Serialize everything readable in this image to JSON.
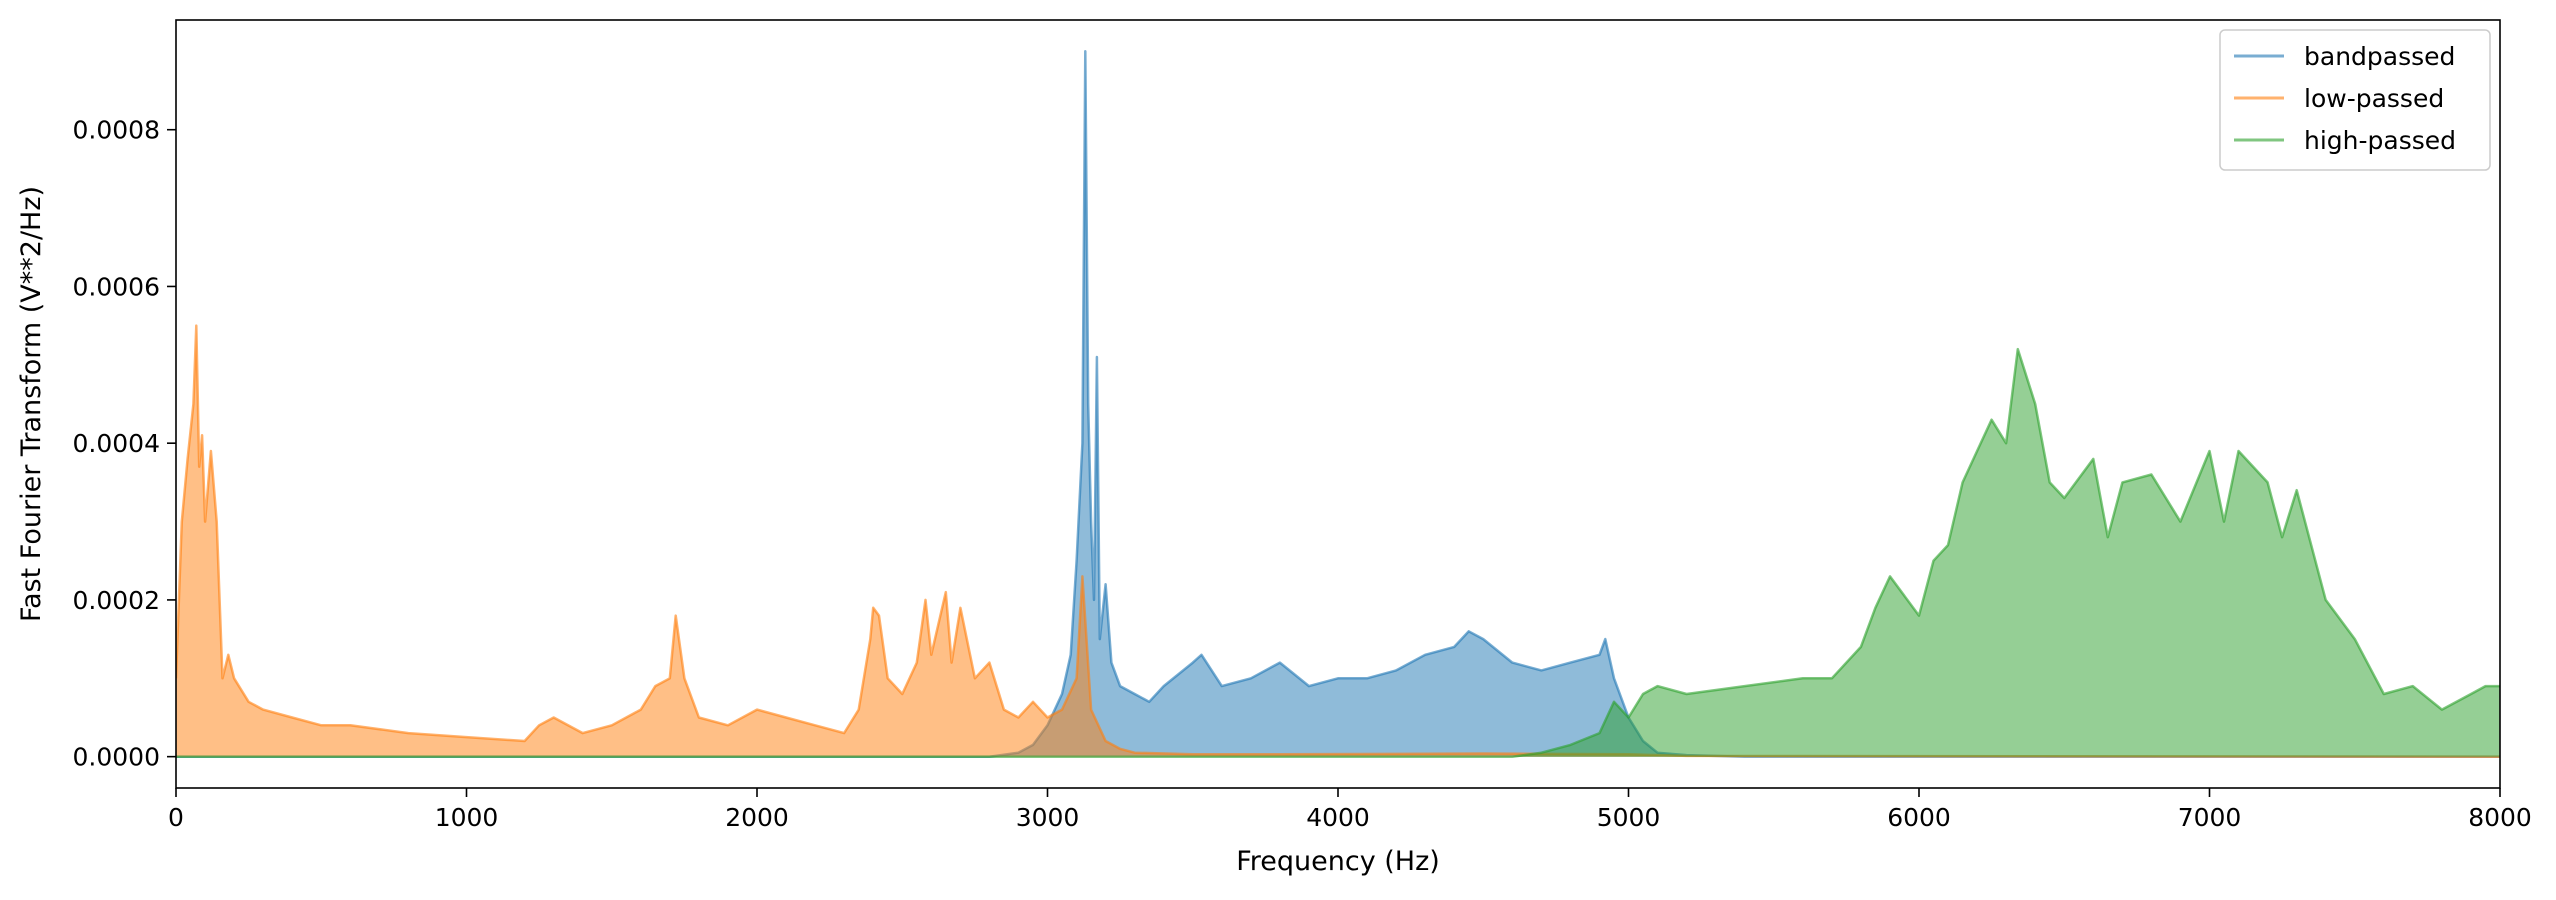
{
  "chart_data": {
    "type": "line",
    "title": "",
    "xlabel": "Frequency (Hz)",
    "ylabel": "Fast Fourier Transform (V**2/Hz)",
    "xlim": [
      0,
      8000
    ],
    "ylim": [
      -4e-05,
      0.00094
    ],
    "xticks": [
      0,
      1000,
      2000,
      3000,
      4000,
      5000,
      6000,
      7000,
      8000
    ],
    "xtick_labels": [
      "0",
      "1000",
      "2000",
      "3000",
      "4000",
      "5000",
      "6000",
      "7000",
      "8000"
    ],
    "yticks": [
      0,
      0.0002,
      0.0004,
      0.0006,
      0.0008
    ],
    "ytick_labels": [
      "0.0000",
      "0.0002",
      "0.0004",
      "0.0006",
      "0.0008"
    ],
    "grid": false,
    "legend_position": "top-right",
    "series": [
      {
        "name": "bandpassed",
        "color": "#1f77b4",
        "alpha": 0.5,
        "x": [
          0,
          2800,
          2900,
          2950,
          3000,
          3050,
          3080,
          3100,
          3120,
          3130,
          3140,
          3150,
          3160,
          3170,
          3180,
          3200,
          3220,
          3250,
          3300,
          3350,
          3400,
          3500,
          3530,
          3600,
          3700,
          3800,
          3900,
          4000,
          4100,
          4200,
          4300,
          4400,
          4450,
          4500,
          4600,
          4700,
          4800,
          4900,
          4920,
          4950,
          5000,
          5050,
          5100,
          5200,
          5400,
          8000
        ],
        "y": [
          0.0,
          0.0,
          5e-06,
          1.5e-05,
          4e-05,
          8e-05,
          0.00013,
          0.00025,
          0.0004,
          0.0009,
          0.00045,
          0.0003,
          0.0002,
          0.00051,
          0.00015,
          0.00022,
          0.00012,
          9e-05,
          8e-05,
          7e-05,
          9e-05,
          0.00012,
          0.00013,
          9e-05,
          0.0001,
          0.00012,
          9e-05,
          0.0001,
          0.0001,
          0.00011,
          0.00013,
          0.00014,
          0.00016,
          0.00015,
          0.00012,
          0.00011,
          0.00012,
          0.00013,
          0.00015,
          0.0001,
          5e-05,
          2e-05,
          5e-06,
          2e-06,
          0.0,
          0.0
        ]
      },
      {
        "name": "low-passed",
        "color": "#ff7f0e",
        "alpha": 0.5,
        "x": [
          0,
          20,
          40,
          60,
          70,
          80,
          90,
          100,
          120,
          140,
          160,
          180,
          200,
          250,
          300,
          400,
          500,
          600,
          800,
          1000,
          1200,
          1250,
          1300,
          1400,
          1500,
          1600,
          1650,
          1700,
          1720,
          1750,
          1800,
          1900,
          2000,
          2100,
          2200,
          2300,
          2350,
          2390,
          2400,
          2420,
          2450,
          2500,
          2550,
          2580,
          2600,
          2650,
          2670,
          2700,
          2750,
          2800,
          2850,
          2900,
          2950,
          3000,
          3050,
          3100,
          3120,
          3150,
          3200,
          3250,
          3300,
          3500,
          3800,
          4500,
          5000,
          5200,
          8000
        ],
        "y": [
          0.0001,
          0.0003,
          0.00038,
          0.00045,
          0.00055,
          0.00037,
          0.00041,
          0.0003,
          0.00039,
          0.0003,
          0.0001,
          0.00013,
          0.0001,
          7e-05,
          6e-05,
          5e-05,
          4e-05,
          4e-05,
          3e-05,
          2.5e-05,
          2e-05,
          4e-05,
          5e-05,
          3e-05,
          4e-05,
          6e-05,
          9e-05,
          0.0001,
          0.00018,
          0.0001,
          5e-05,
          4e-05,
          6e-05,
          5e-05,
          4e-05,
          3e-05,
          6e-05,
          0.00015,
          0.00019,
          0.00018,
          0.0001,
          8e-05,
          0.00012,
          0.0002,
          0.00013,
          0.00021,
          0.00012,
          0.00019,
          0.0001,
          0.00012,
          6e-05,
          5e-05,
          7e-05,
          5e-05,
          6e-05,
          0.0001,
          0.00023,
          6e-05,
          2e-05,
          1e-05,
          5e-06,
          3e-06,
          3e-06,
          4e-06,
          3e-06,
          1e-06,
          0.0
        ]
      },
      {
        "name": "high-passed",
        "color": "#2ca02c",
        "alpha": 0.5,
        "x": [
          0,
          4600,
          4700,
          4800,
          4900,
          4950,
          5000,
          5050,
          5100,
          5200,
          5400,
          5600,
          5700,
          5800,
          5850,
          5900,
          6000,
          6050,
          6100,
          6150,
          6200,
          6250,
          6300,
          6340,
          6400,
          6450,
          6500,
          6600,
          6650,
          6700,
          6800,
          6900,
          7000,
          7050,
          7100,
          7200,
          7250,
          7300,
          7400,
          7500,
          7600,
          7700,
          7800,
          7900,
          7950,
          8000
        ],
        "y": [
          0.0,
          0.0,
          5e-06,
          1.5e-05,
          3e-05,
          7e-05,
          5e-05,
          8e-05,
          9e-05,
          8e-05,
          9e-05,
          0.0001,
          0.0001,
          0.00014,
          0.00019,
          0.00023,
          0.00018,
          0.00025,
          0.00027,
          0.00035,
          0.00039,
          0.00043,
          0.0004,
          0.00052,
          0.00045,
          0.00035,
          0.00033,
          0.00038,
          0.00028,
          0.00035,
          0.00036,
          0.0003,
          0.00039,
          0.0003,
          0.00039,
          0.00035,
          0.00028,
          0.00034,
          0.0002,
          0.00015,
          8e-05,
          9e-05,
          6e-05,
          8e-05,
          9e-05,
          9e-05
        ]
      }
    ]
  }
}
